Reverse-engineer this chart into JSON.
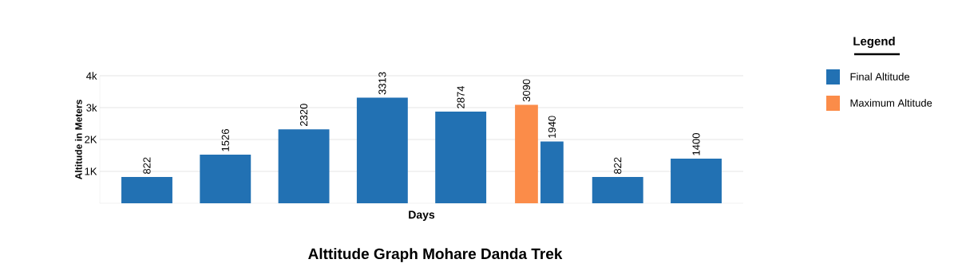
{
  "chart_data": {
    "type": "bar",
    "title": "Alttitude Graph Mohare Danda  Trek",
    "xlabel": "Days",
    "ylabel": "Altitude in Meters",
    "legend_title": "Legend",
    "categories": [
      null,
      null,
      null,
      null,
      null,
      null,
      null,
      null
    ],
    "series": [
      {
        "name": "Maximum Altitude",
        "color": "#fb8c49",
        "values": [
          null,
          null,
          null,
          null,
          null,
          3090,
          null,
          null
        ]
      },
      {
        "name": "Final Altitude",
        "color": "#2271b3",
        "values": [
          822,
          1526,
          2320,
          3313,
          2874,
          1940,
          822,
          1400
        ]
      }
    ],
    "ylim": [
      0,
      4000
    ],
    "yticks": [
      {
        "value": 1000,
        "label": "1K"
      },
      {
        "value": 2000,
        "label": "2K"
      },
      {
        "value": 3000,
        "label": "3k"
      },
      {
        "value": 4000,
        "label": "4k"
      }
    ],
    "grid": "y",
    "legend": "right",
    "data_labels": true
  }
}
